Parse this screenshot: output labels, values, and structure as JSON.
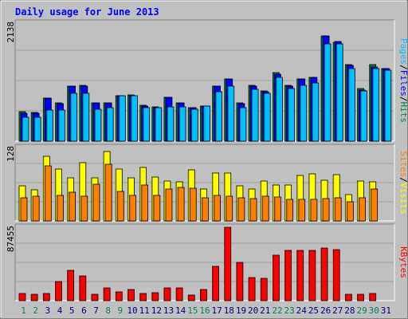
{
  "chart_data": [
    {
      "type": "bar",
      "title": "Daily usage for June 2013",
      "ylabel_max": "2138",
      "legend": [
        "Pages",
        "/",
        "Files",
        "/",
        "Hits"
      ],
      "ylim": [
        0,
        2138
      ],
      "categories": [
        "1",
        "2",
        "3",
        "4",
        "5",
        "6",
        "7",
        "8",
        "9",
        "10",
        "11",
        "12",
        "13",
        "14",
        "15",
        "16",
        "17",
        "18",
        "19",
        "20",
        "21",
        "22",
        "23",
        "24",
        "25",
        "26",
        "27",
        "28",
        "29",
        "30",
        "31"
      ],
      "series": [
        {
          "name": "Hits",
          "color": "#008040",
          "values": [
            530,
            520,
            780,
            690,
            1000,
            1010,
            700,
            700,
            830,
            840,
            650,
            620,
            790,
            700,
            610,
            630,
            1000,
            1130,
            690,
            1010,
            910,
            1240,
            1010,
            1130,
            1160,
            1900,
            1790,
            1390,
            950,
            1390,
            1310
          ]
        },
        {
          "name": "Files",
          "color": "#0000ff",
          "values": [
            510,
            500,
            780,
            680,
            1000,
            1000,
            700,
            690,
            830,
            830,
            640,
            610,
            790,
            690,
            600,
            630,
            990,
            1120,
            680,
            1000,
            900,
            1210,
            1000,
            1120,
            1160,
            1900,
            1800,
            1370,
            930,
            1340,
            1310
          ]
        },
        {
          "name": "Pages",
          "color": "#00c0ff",
          "values": [
            440,
            440,
            570,
            570,
            860,
            860,
            580,
            610,
            830,
            820,
            600,
            610,
            620,
            620,
            580,
            640,
            890,
            1000,
            600,
            940,
            860,
            1150,
            960,
            1010,
            1060,
            1760,
            1760,
            1310,
            910,
            1310,
            1290
          ]
        }
      ]
    },
    {
      "type": "bar",
      "ylabel_max": "128",
      "legend": [
        "Sites",
        "/",
        "Visits"
      ],
      "ylim": [
        0,
        128
      ],
      "categories": [
        "1",
        "2",
        "3",
        "4",
        "5",
        "6",
        "7",
        "8",
        "9",
        "10",
        "11",
        "12",
        "13",
        "14",
        "15",
        "16",
        "17",
        "18",
        "19",
        "20",
        "21",
        "22",
        "23",
        "24",
        "25",
        "26",
        "27",
        "28",
        "29",
        "30",
        "31"
      ],
      "series": [
        {
          "name": "Visits",
          "color": "#ffff00",
          "values": [
            61,
            54,
            112,
            91,
            75,
            101,
            75,
            121,
            91,
            75,
            93,
            77,
            70,
            68,
            89,
            56,
            83,
            83,
            61,
            56,
            70,
            62,
            62,
            79,
            82,
            71,
            81,
            46,
            70,
            68,
            0
          ]
        },
        {
          "name": "Sites",
          "color": "#ff8000",
          "values": [
            40,
            43,
            96,
            45,
            50,
            43,
            64,
            99,
            51,
            45,
            63,
            45,
            55,
            59,
            57,
            40,
            44,
            43,
            41,
            39,
            43,
            42,
            38,
            37,
            38,
            39,
            40,
            33,
            41,
            55,
            0
          ]
        }
      ]
    },
    {
      "type": "bar",
      "ylabel_max": "87455",
      "legend": [
        "KBytes"
      ],
      "ylim": [
        0,
        87455
      ],
      "categories": [
        "1",
        "2",
        "3",
        "4",
        "5",
        "6",
        "7",
        "8",
        "9",
        "10",
        "11",
        "12",
        "13",
        "14",
        "15",
        "16",
        "17",
        "18",
        "19",
        "20",
        "21",
        "22",
        "23",
        "24",
        "25",
        "26",
        "27",
        "28",
        "29",
        "30",
        "31"
      ],
      "series": [
        {
          "name": "KBytes",
          "color": "#ff0000",
          "values": [
            8500,
            7800,
            9000,
            23000,
            36000,
            29000,
            8000,
            15000,
            10000,
            13600,
            8800,
            9100,
            15000,
            15000,
            6200,
            13600,
            41000,
            87455,
            46000,
            28000,
            27000,
            54000,
            60000,
            60000,
            60000,
            63000,
            61000,
            8000,
            8000,
            9000,
            0
          ]
        }
      ]
    }
  ],
  "weekend_days": [
    "1",
    "2",
    "8",
    "9",
    "15",
    "16",
    "22",
    "23",
    "29",
    "30"
  ],
  "colors": {
    "background": "#c0c0c0",
    "title": "#0000ff",
    "weekend_label": "#00805f",
    "weekday_label": "#000080"
  }
}
